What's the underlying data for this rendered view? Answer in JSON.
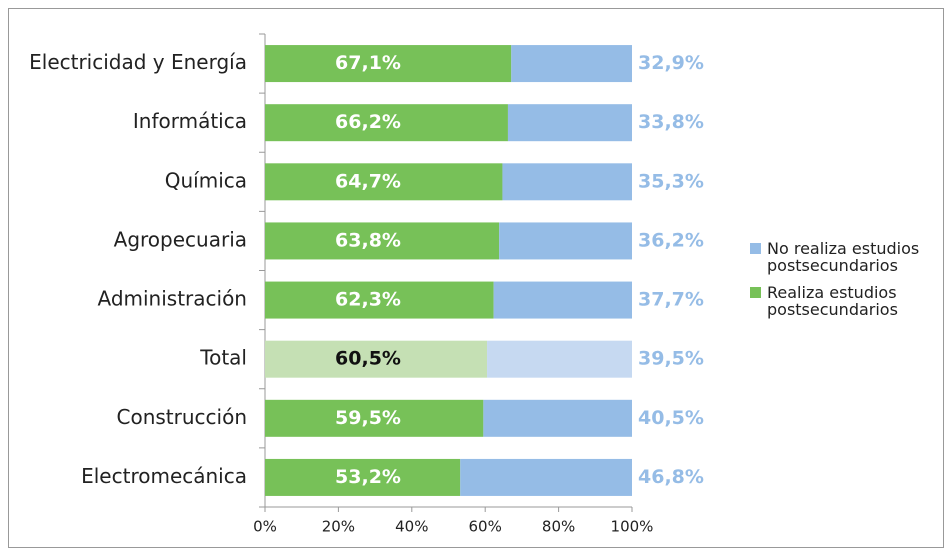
{
  "chart_data": {
    "type": "stacked_bar_horizontal",
    "categories": [
      "Electricidad y Energía",
      "Informática",
      "Química",
      "Agropecuaria",
      "Administración",
      "Total",
      "Construcción",
      "Electromecánica"
    ],
    "series": [
      {
        "name": "Realiza estudios postsecundarios",
        "color": "#77c158",
        "highlight_color": "#c5e0b4",
        "values": [
          67.1,
          66.2,
          64.7,
          63.8,
          62.3,
          60.5,
          59.5,
          53.2
        ],
        "value_labels": [
          "67,1%",
          "66,2%",
          "64,7%",
          "63,8%",
          "62,3%",
          "60,5%",
          "59,5%",
          "53,2%"
        ]
      },
      {
        "name": "No realiza estudios postsecundarios",
        "color": "#95bce6",
        "highlight_color": "#c6d9f1",
        "values": [
          32.9,
          33.8,
          35.3,
          36.2,
          37.7,
          39.5,
          40.5,
          46.8
        ],
        "value_labels": [
          "32,9%",
          "33,8%",
          "35,3%",
          "36,2%",
          "37,7%",
          "39,5%",
          "40,5%",
          "46,8%"
        ]
      }
    ],
    "highlight_index": 5,
    "xlim": [
      0,
      100
    ],
    "xticks": [
      {
        "value": 0,
        "label": "0%"
      },
      {
        "value": 20,
        "label": "20%"
      },
      {
        "value": 40,
        "label": "40%"
      },
      {
        "value": 60,
        "label": "60%"
      },
      {
        "value": 80,
        "label": "80%"
      },
      {
        "value": 100,
        "label": "100%"
      }
    ],
    "legend": "right"
  }
}
